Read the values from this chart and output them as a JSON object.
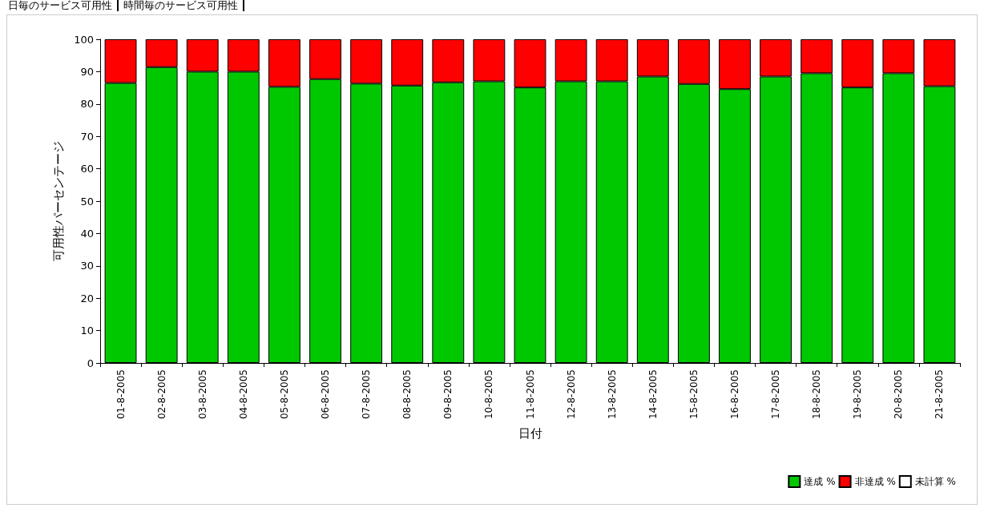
{
  "chart_data": {
    "type": "bar",
    "stacked": true,
    "xlabel": "日付",
    "ylabel": "可用性パーセンテージ",
    "annotations": [
      "日毎のサービス可用性",
      "時間毎のサービス可用性"
    ],
    "categories": [
      "01-8-2005",
      "02-8-2005",
      "03-8-2005",
      "04-8-2005",
      "05-8-2005",
      "06-8-2005",
      "07-8-2005",
      "08-8-2005",
      "09-8-2005",
      "10-8-2005",
      "11-8-2005",
      "12-8-2005",
      "13-8-2005",
      "14-8-2005",
      "15-8-2005",
      "16-8-2005",
      "17-8-2005",
      "18-8-2005",
      "19-8-2005",
      "20-8-2005",
      "21-8-2005"
    ],
    "series": [
      {
        "name": "達成 %",
        "color": "#00c800",
        "values": [
          86.5,
          91.4,
          90,
          90,
          85.3,
          87.7,
          86.3,
          85.7,
          86.7,
          87,
          85.1,
          87,
          87,
          88.5,
          86.2,
          84.6,
          88.5,
          89.5,
          85.1,
          89.5,
          85.5
        ]
      },
      {
        "name": "非達成 %",
        "color": "#ff0000",
        "values": [
          13.5,
          8.6,
          10,
          10,
          14.7,
          12.3,
          13.7,
          14.3,
          13.3,
          13,
          14.9,
          13,
          13,
          11.5,
          13.8,
          15.4,
          11.5,
          10.5,
          14.9,
          10.5,
          14.5
        ]
      },
      {
        "name": "未計算 %",
        "color": "#ffffff",
        "values": [
          0,
          0,
          0,
          0,
          0,
          0,
          0,
          0,
          0,
          0,
          0,
          0,
          0,
          0,
          0,
          0,
          0,
          0,
          0,
          0,
          0
        ]
      }
    ],
    "ylim": [
      0,
      100
    ],
    "yticks": [
      0,
      10,
      20,
      30,
      40,
      50,
      60,
      70,
      80,
      90,
      100
    ],
    "grid": false,
    "legend": "bottom right"
  }
}
